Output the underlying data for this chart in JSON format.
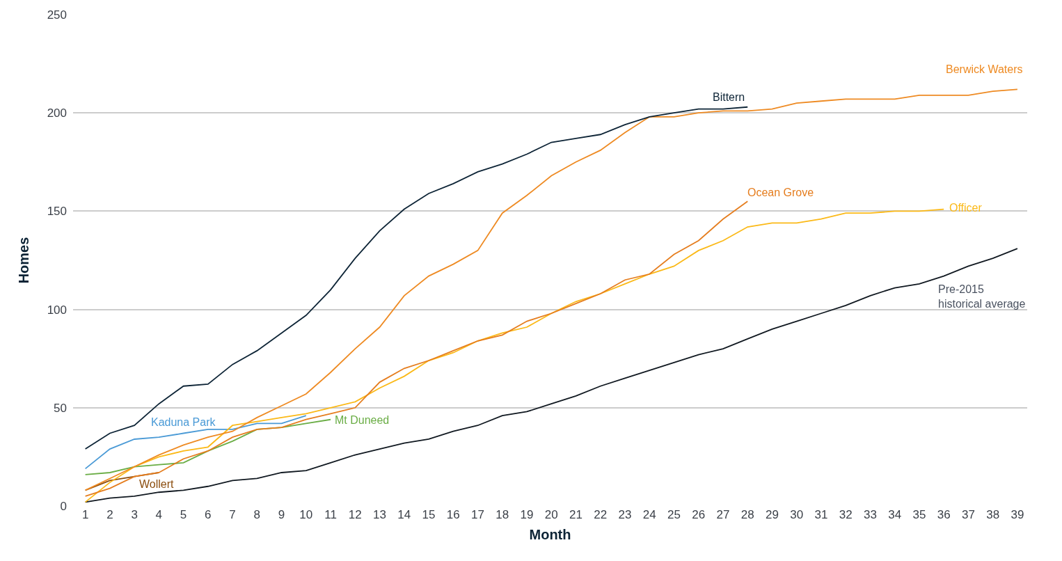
{
  "chart_data": {
    "type": "line",
    "xlabel": "Month",
    "ylabel": "Homes",
    "x": [
      1,
      2,
      3,
      4,
      5,
      6,
      7,
      8,
      9,
      10,
      11,
      12,
      13,
      14,
      15,
      16,
      17,
      18,
      19,
      20,
      21,
      22,
      23,
      24,
      25,
      26,
      27,
      28,
      29,
      30,
      31,
      32,
      33,
      34,
      35,
      36,
      37,
      38,
      39
    ],
    "xlim": [
      0.5,
      39.4
    ],
    "xticks": [
      1,
      2,
      3,
      4,
      5,
      6,
      7,
      8,
      9,
      10,
      11,
      12,
      13,
      14,
      15,
      16,
      17,
      18,
      19,
      20,
      21,
      22,
      23,
      24,
      25,
      26,
      27,
      28,
      29,
      30,
      31,
      32,
      33,
      34,
      35,
      36,
      37,
      38,
      39
    ],
    "ylim": [
      0,
      250
    ],
    "yticks": [
      0,
      50,
      100,
      150,
      200,
      250
    ],
    "grid": "y",
    "legend": false,
    "marker": "none",
    "line_style": "solid",
    "series": [
      {
        "name": "Pre-2015\nhistorical average",
        "color": "#101820",
        "values": [
          2,
          4,
          5,
          7,
          8,
          10,
          13,
          14,
          17,
          18,
          22,
          26,
          29,
          32,
          34,
          38,
          41,
          46,
          48,
          52,
          56,
          61,
          65,
          69,
          73,
          77,
          80,
          85,
          90,
          94,
          98,
          102,
          107,
          111,
          113,
          117,
          122,
          126,
          131
        ]
      },
      {
        "name": "Wollert",
        "color": "#8b4d0e",
        "x": [
          1,
          2,
          3,
          4
        ],
        "values": [
          8,
          13,
          15,
          17
        ]
      },
      {
        "name": "Mt Duneed",
        "color": "#6aad45",
        "x": [
          1,
          2,
          3,
          4,
          5,
          6,
          7,
          8,
          9,
          10,
          11
        ],
        "values": [
          16,
          17,
          20,
          21,
          22,
          28,
          33,
          39,
          40,
          42,
          44
        ]
      },
      {
        "name": "Kaduna Park",
        "color": "#4a9ad6",
        "x": [
          1,
          2,
          3,
          4,
          5,
          6,
          7,
          8,
          9,
          10
        ],
        "values": [
          19,
          29,
          34,
          35,
          37,
          39,
          39,
          42,
          42,
          46
        ]
      },
      {
        "name": "Officer",
        "color": "#fbb917",
        "x": [
          1,
          2,
          3,
          4,
          5,
          6,
          7,
          8,
          9,
          10,
          11,
          12,
          13,
          14,
          15,
          16,
          17,
          18,
          19,
          20,
          21,
          22,
          23,
          24,
          25,
          26,
          27,
          28,
          29,
          30,
          31,
          32,
          33,
          34,
          35,
          36
        ],
        "values": [
          2,
          12,
          20,
          25,
          28,
          30,
          41,
          43,
          45,
          47,
          50,
          53,
          60,
          66,
          74,
          78,
          84,
          88,
          91,
          98,
          104,
          108,
          113,
          118,
          122,
          130,
          135,
          142,
          144,
          144,
          146,
          149,
          149,
          150,
          150,
          151
        ]
      },
      {
        "name": "Ocean Grove",
        "color": "#e57d1e",
        "x": [
          1,
          2,
          3,
          4,
          5,
          6,
          7,
          8,
          9,
          10,
          11,
          12,
          13,
          14,
          15,
          16,
          17,
          18,
          19,
          20,
          21,
          22,
          23,
          24,
          25,
          26,
          27,
          28
        ],
        "values": [
          5,
          9,
          15,
          17,
          24,
          28,
          35,
          39,
          40,
          44,
          47,
          50,
          63,
          70,
          74,
          79,
          84,
          87,
          94,
          98,
          103,
          108,
          115,
          118,
          128,
          135,
          146,
          155
        ]
      },
      {
        "name": "Berwick Waters",
        "color": "#ee8a22",
        "values": [
          8,
          14,
          20,
          26,
          31,
          35,
          38,
          45,
          51,
          57,
          68,
          80,
          91,
          107,
          117,
          123,
          130,
          149,
          158,
          168,
          175,
          181,
          190,
          198,
          198,
          200,
          201,
          201,
          202,
          205,
          206,
          207,
          207,
          207,
          209,
          209,
          209,
          211,
          212
        ]
      },
      {
        "name": "Bittern",
        "color": "#0d2436",
        "x": [
          1,
          2,
          3,
          4,
          5,
          6,
          7,
          8,
          9,
          10,
          11,
          12,
          13,
          14,
          15,
          16,
          17,
          18,
          19,
          20,
          21,
          22,
          23,
          24,
          25,
          26,
          27,
          28
        ],
        "values": [
          29,
          37,
          41,
          52,
          61,
          62,
          72,
          79,
          88,
          97,
          110,
          126,
          140,
          151,
          159,
          164,
          170,
          174,
          179,
          185,
          187,
          189,
          194,
          198,
          200,
          202,
          202,
          203
        ]
      }
    ]
  }
}
